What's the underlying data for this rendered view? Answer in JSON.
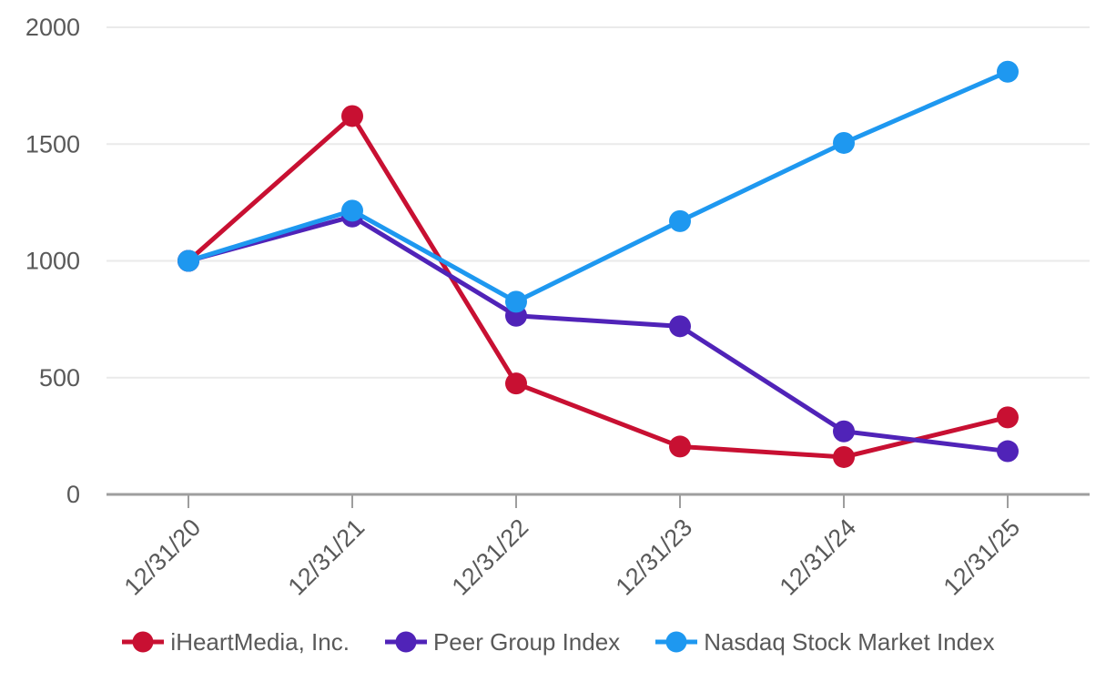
{
  "chart_data": {
    "type": "line",
    "title": "",
    "xlabel": "",
    "ylabel": "",
    "categories": [
      "12/31/20",
      "12/31/21",
      "12/31/22",
      "12/31/23",
      "12/31/24",
      "12/31/25"
    ],
    "series": [
      {
        "name": "iHeartMedia, Inc.",
        "color": "#C81032",
        "values": [
          1000,
          1620,
          475,
          205,
          160,
          330
        ]
      },
      {
        "name": "Peer Group Index",
        "color": "#5023B8",
        "values": [
          1000,
          1190,
          765,
          720,
          270,
          185
        ]
      },
      {
        "name": "Nasdaq Stock Market Index",
        "color": "#1E98F0",
        "values": [
          1000,
          1215,
          825,
          1170,
          1505,
          1810
        ]
      }
    ],
    "ylim": [
      0,
      2000
    ],
    "yticks": [
      0,
      500,
      1000,
      1500,
      2000
    ],
    "grid": "horizontal",
    "legend_position": "bottom",
    "marker": "circle",
    "styles": {
      "grid_color": "#EAEAEA",
      "axis_color": "#9E9E9E",
      "label_color": "#595959"
    }
  }
}
